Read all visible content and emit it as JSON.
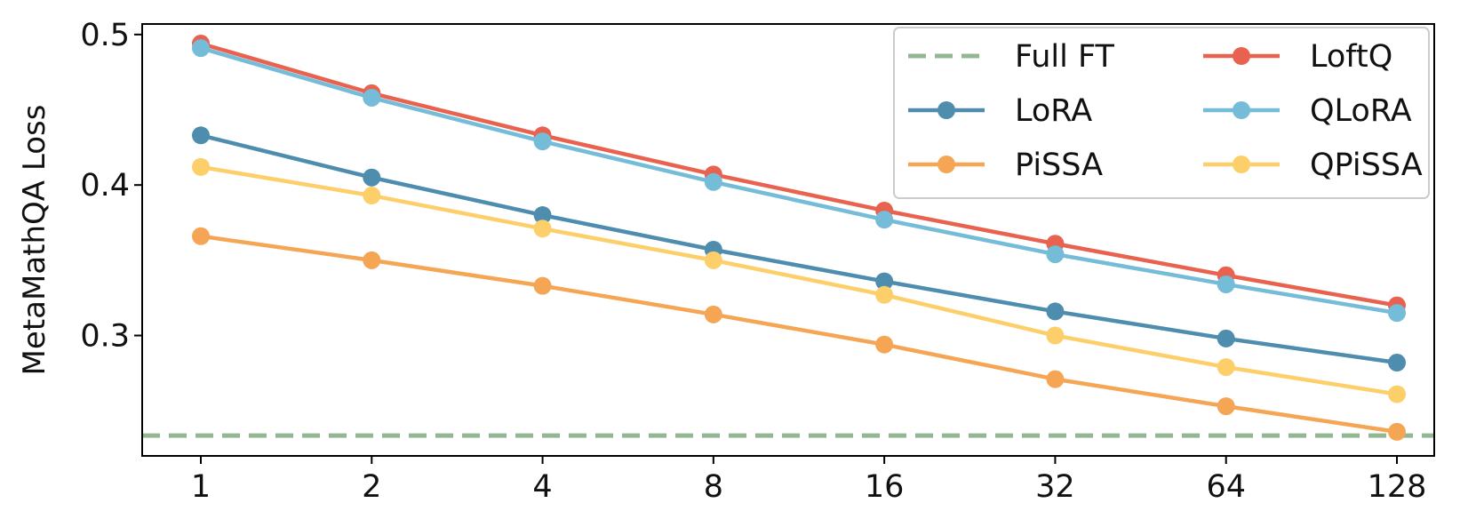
{
  "chart_data": {
    "type": "line",
    "title": "",
    "xlabel": "",
    "ylabel": "MetaMathQA Loss",
    "categories": [
      "1",
      "2",
      "4",
      "8",
      "16",
      "32",
      "64",
      "128"
    ],
    "ylim": [
      0.22,
      0.507
    ],
    "yticks": [
      "0.3",
      "0.4",
      "0.5"
    ],
    "ytick_values": [
      0.3,
      0.4,
      0.5
    ],
    "grid": false,
    "legend_placement": "top-right",
    "legend_columns": 2,
    "reference_lines": [
      {
        "name": "Full FT",
        "value": 0.2335,
        "color": "#93b793",
        "style": "dashed"
      }
    ],
    "series": [
      {
        "name": "LoftQ",
        "color": "#e8624f",
        "values": [
          0.494,
          0.461,
          0.433,
          0.407,
          0.383,
          0.361,
          0.34,
          0.32
        ]
      },
      {
        "name": "QLoRA",
        "color": "#74bcd7",
        "values": [
          0.491,
          0.458,
          0.429,
          0.402,
          0.377,
          0.354,
          0.334,
          0.315
        ]
      },
      {
        "name": "LoRA",
        "color": "#4e8dae",
        "values": [
          0.433,
          0.405,
          0.38,
          0.357,
          0.336,
          0.316,
          0.298,
          0.282
        ]
      },
      {
        "name": "QPiSSA",
        "color": "#fdcf6a",
        "values": [
          0.412,
          0.393,
          0.371,
          0.35,
          0.327,
          0.3,
          0.279,
          0.261
        ]
      },
      {
        "name": "PiSSA",
        "color": "#f5a654",
        "values": [
          0.366,
          0.35,
          0.333,
          0.314,
          0.294,
          0.271,
          0.253,
          0.236
        ]
      }
    ],
    "legend": [
      "Full FT",
      "LoftQ",
      "LoRA",
      "QLoRA",
      "PiSSA",
      "QPiSSA"
    ]
  }
}
